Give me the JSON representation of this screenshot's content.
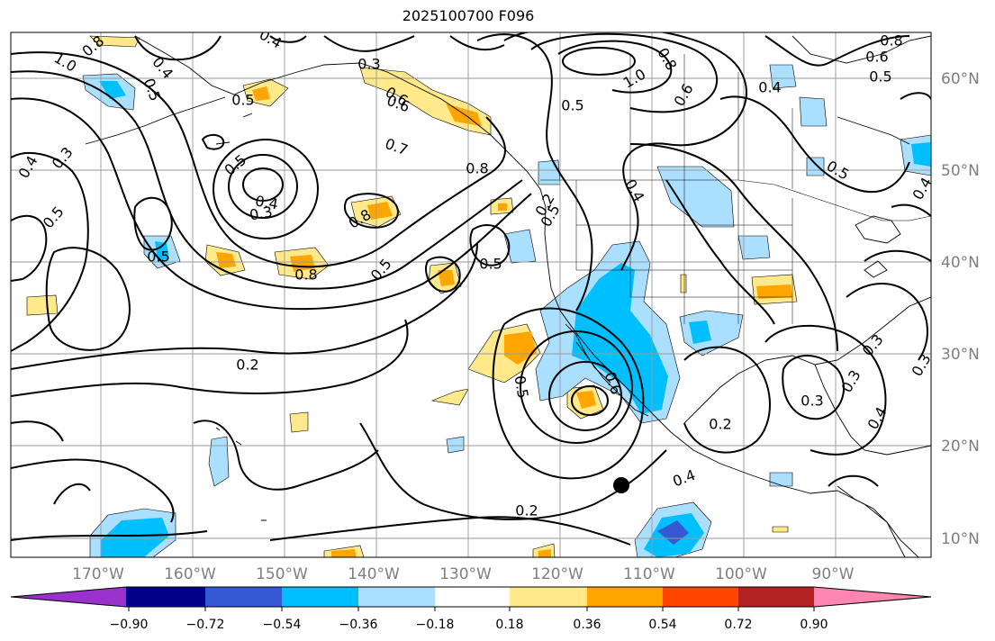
{
  "title": "2025100700 F096",
  "map": {
    "lat_ticks": [
      "60°N",
      "50°N",
      "40°N",
      "30°N",
      "20°N",
      "10°N"
    ],
    "lon_ticks": [
      "170°W",
      "160°W",
      "150°W",
      "140°W",
      "130°W",
      "120°W",
      "110°W",
      "100°W",
      "90°W"
    ],
    "contour_labels": [
      "0.8",
      "1.0",
      "0.4",
      "0.3",
      "0.6",
      "0.5",
      "0.3",
      "0.4",
      "0.5",
      "0.7",
      "0.8",
      "0.8",
      "0.5",
      "0.4",
      "0.3",
      "0.8",
      "0.5",
      "0.5",
      "0.5",
      "0.2",
      "0.4",
      "0.5",
      "1.0",
      "0.8",
      "0.6",
      "0.5",
      "0.4",
      "0.6",
      "0.5",
      "0.3",
      "0.2",
      "0.5",
      "0.6",
      "0.3",
      "0.2",
      "0.4",
      "0.2",
      "0.4",
      "0.5",
      "0.6",
      "0.5",
      "0.3",
      "0.3",
      "0.4",
      "0.4",
      "0.8"
    ],
    "marker": "storm-center"
  },
  "colorbar": {
    "ticks": [
      "−0.90",
      "−0.72",
      "−0.54",
      "−0.36",
      "−0.18",
      "0.18",
      "0.36",
      "0.54",
      "0.72",
      "0.90"
    ],
    "colors": [
      "#9932cc",
      "#00008b",
      "#3558d4",
      "#00bfff",
      "#aadfff",
      "#ffffff",
      "#ffe98a",
      "#ffa500",
      "#ff4500",
      "#b22222",
      "#ff86b0"
    ]
  },
  "colors": {
    "neg_light": "#aadfff",
    "neg_mid": "#00bfff",
    "neg_dark": "#3558d4",
    "pos_light": "#ffe98a",
    "pos_mid": "#ffa500",
    "grid": "#999999"
  }
}
